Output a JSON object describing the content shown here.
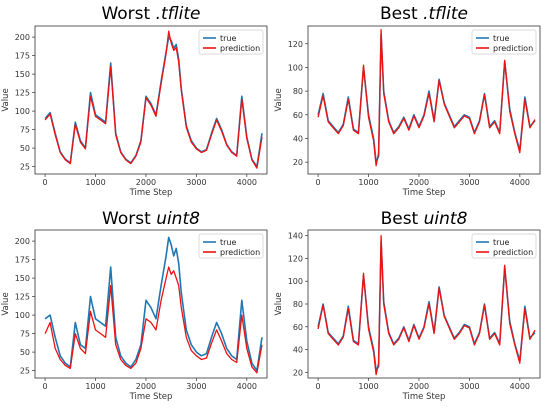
{
  "colors": {
    "true": "#1f77b4",
    "prediction": "#ee1111"
  },
  "chart_data": [
    {
      "type": "line",
      "title_prefix": "Worst ",
      "title_suffix": ".tflite",
      "xlabel": "Time Step",
      "ylabel": "Value",
      "xlim": [
        -200,
        4400
      ],
      "ylim": [
        15,
        215
      ],
      "xticks": [
        0,
        1000,
        2000,
        3000,
        4000
      ],
      "yticks": [
        25,
        50,
        75,
        100,
        125,
        150,
        175,
        200
      ],
      "legend": "top-right",
      "grid": false,
      "series": [
        {
          "name": "true",
          "values_key": "true"
        },
        {
          "name": "prediction",
          "values_key": "prediction"
        }
      ],
      "x": [
        0,
        100,
        200,
        300,
        400,
        500,
        600,
        700,
        800,
        900,
        1000,
        1100,
        1200,
        1300,
        1400,
        1500,
        1600,
        1700,
        1800,
        1900,
        2000,
        2100,
        2200,
        2300,
        2400,
        2450,
        2500,
        2550,
        2600,
        2650,
        2700,
        2800,
        2900,
        3000,
        3100,
        3200,
        3300,
        3400,
        3500,
        3600,
        3700,
        3800,
        3900,
        4000,
        4100,
        4200,
        4300
      ],
      "values": {
        "true": [
          90,
          98,
          70,
          45,
          35,
          30,
          85,
          60,
          50,
          125,
          95,
          90,
          85,
          165,
          70,
          45,
          35,
          30,
          40,
          60,
          120,
          110,
          95,
          140,
          180,
          200,
          195,
          185,
          190,
          170,
          130,
          80,
          60,
          50,
          45,
          48,
          70,
          90,
          75,
          55,
          45,
          40,
          120,
          65,
          35,
          25,
          70
        ],
        "prediction": [
          88,
          96,
          68,
          44,
          34,
          29,
          82,
          58,
          49,
          120,
          93,
          88,
          83,
          160,
          68,
          44,
          34,
          29,
          39,
          58,
          118,
          108,
          93,
          137,
          178,
          208,
          192,
          182,
          186,
          166,
          128,
          78,
          58,
          49,
          44,
          47,
          68,
          88,
          73,
          54,
          44,
          39,
          116,
          63,
          34,
          23,
          65
        ]
      }
    },
    {
      "type": "line",
      "title_prefix": "Best ",
      "title_suffix": ".tflite",
      "xlabel": "Time Step",
      "ylabel": "Value",
      "xlim": [
        -200,
        4400
      ],
      "ylim": [
        10,
        135
      ],
      "xticks": [
        0,
        1000,
        2000,
        3000,
        4000
      ],
      "yticks": [
        20,
        40,
        60,
        80,
        100,
        120
      ],
      "legend": "top-right",
      "grid": false,
      "series": [
        {
          "name": "true",
          "values_key": "true"
        },
        {
          "name": "prediction",
          "values_key": "prediction"
        }
      ],
      "x": [
        0,
        100,
        200,
        300,
        400,
        500,
        600,
        700,
        800,
        900,
        1000,
        1100,
        1150,
        1200,
        1250,
        1300,
        1400,
        1500,
        1600,
        1700,
        1800,
        1900,
        2000,
        2100,
        2200,
        2300,
        2400,
        2500,
        2600,
        2700,
        2800,
        2900,
        3000,
        3100,
        3200,
        3300,
        3400,
        3500,
        3600,
        3700,
        3800,
        3900,
        4000,
        4100,
        4200,
        4300
      ],
      "values": {
        "true": [
          60,
          78,
          55,
          50,
          45,
          52,
          75,
          48,
          45,
          100,
          60,
          40,
          20,
          25,
          128,
          80,
          55,
          45,
          50,
          58,
          48,
          60,
          50,
          60,
          80,
          55,
          90,
          70,
          60,
          50,
          55,
          60,
          58,
          45,
          55,
          78,
          50,
          55,
          45,
          105,
          65,
          45,
          30,
          75,
          50,
          55
        ],
        "prediction": [
          58,
          76,
          54,
          49,
          44,
          51,
          73,
          47,
          44,
          102,
          58,
          38,
          17,
          28,
          132,
          78,
          54,
          44,
          49,
          57,
          47,
          59,
          49,
          59,
          78,
          54,
          89,
          69,
          59,
          49,
          54,
          59,
          57,
          44,
          54,
          77,
          49,
          54,
          44,
          106,
          63,
          44,
          28,
          73,
          49,
          56
        ]
      }
    },
    {
      "type": "line",
      "title_prefix": "Worst ",
      "title_suffix": "uint8",
      "xlabel": "Time Step",
      "ylabel": "Value",
      "xlim": [
        -200,
        4400
      ],
      "ylim": [
        15,
        215
      ],
      "xticks": [
        0,
        1000,
        2000,
        3000,
        4000
      ],
      "yticks": [
        25,
        50,
        75,
        100,
        125,
        150,
        175,
        200
      ],
      "legend": "top-right",
      "grid": false,
      "series": [
        {
          "name": "true",
          "values_key": "true"
        },
        {
          "name": "prediction",
          "values_key": "prediction"
        }
      ],
      "x": [
        0,
        100,
        200,
        300,
        400,
        500,
        600,
        700,
        800,
        900,
        1000,
        1100,
        1200,
        1300,
        1400,
        1500,
        1600,
        1700,
        1800,
        1900,
        2000,
        2100,
        2200,
        2300,
        2400,
        2450,
        2500,
        2550,
        2600,
        2650,
        2700,
        2800,
        2900,
        3000,
        3100,
        3200,
        3300,
        3400,
        3500,
        3600,
        3700,
        3800,
        3900,
        4000,
        4100,
        4200,
        4300
      ],
      "values": {
        "true": [
          95,
          100,
          70,
          45,
          35,
          30,
          90,
          60,
          55,
          125,
          95,
          90,
          85,
          165,
          70,
          45,
          35,
          30,
          40,
          60,
          120,
          110,
          95,
          140,
          180,
          205,
          195,
          180,
          190,
          170,
          130,
          80,
          60,
          50,
          45,
          48,
          70,
          90,
          75,
          55,
          45,
          40,
          120,
          65,
          35,
          25,
          70
        ],
        "prediction": [
          75,
          90,
          55,
          40,
          32,
          28,
          75,
          55,
          48,
          105,
          80,
          75,
          70,
          140,
          60,
          40,
          32,
          28,
          35,
          55,
          95,
          90,
          80,
          120,
          150,
          165,
          155,
          160,
          150,
          140,
          110,
          70,
          52,
          45,
          40,
          42,
          62,
          80,
          65,
          48,
          40,
          36,
          100,
          55,
          30,
          22,
          60
        ]
      }
    },
    {
      "type": "line",
      "title_prefix": "Best ",
      "title_suffix": "uint8",
      "xlabel": "Time Step",
      "ylabel": "Value",
      "xlim": [
        -200,
        4400
      ],
      "ylim": [
        15,
        145
      ],
      "xticks": [
        0,
        1000,
        2000,
        3000,
        4000
      ],
      "yticks": [
        20,
        40,
        60,
        80,
        100,
        120,
        140
      ],
      "legend": "top-right",
      "grid": false,
      "series": [
        {
          "name": "true",
          "values_key": "true"
        },
        {
          "name": "prediction",
          "values_key": "prediction"
        }
      ],
      "x": [
        0,
        100,
        200,
        300,
        400,
        500,
        600,
        700,
        800,
        900,
        1000,
        1100,
        1150,
        1200,
        1250,
        1300,
        1400,
        1500,
        1600,
        1700,
        1800,
        1900,
        2000,
        2100,
        2200,
        2300,
        2400,
        2500,
        2600,
        2700,
        2800,
        2900,
        3000,
        3100,
        3200,
        3300,
        3400,
        3500,
        3600,
        3700,
        3800,
        3900,
        4000,
        4100,
        4200,
        4300
      ],
      "values": {
        "true": [
          60,
          80,
          55,
          50,
          45,
          52,
          78,
          48,
          45,
          105,
          60,
          40,
          22,
          25,
          135,
          82,
          55,
          45,
          50,
          60,
          48,
          62,
          50,
          60,
          82,
          55,
          95,
          70,
          60,
          50,
          55,
          62,
          60,
          45,
          55,
          80,
          50,
          55,
          45,
          112,
          65,
          45,
          30,
          78,
          50,
          55
        ],
        "prediction": [
          58,
          79,
          54,
          49,
          44,
          51,
          76,
          47,
          44,
          107,
          58,
          38,
          18,
          28,
          140,
          80,
          54,
          44,
          49,
          59,
          47,
          61,
          49,
          59,
          80,
          54,
          94,
          69,
          59,
          49,
          54,
          61,
          59,
          44,
          54,
          79,
          49,
          54,
          44,
          114,
          63,
          44,
          28,
          76,
          49,
          57
        ]
      }
    }
  ]
}
